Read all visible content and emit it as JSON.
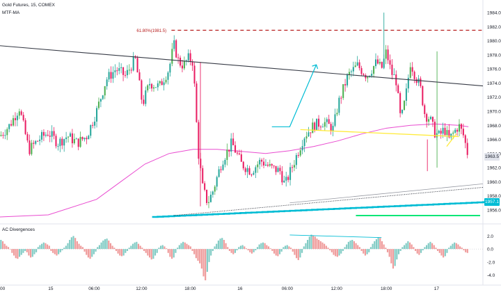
{
  "header": {
    "symbol": "Gold Futures, 15, COMEX",
    "indicator": "MTF-MA"
  },
  "sub_pane": {
    "title": "AC Divergences"
  },
  "fib": {
    "label": "61.80%(1981.5)",
    "price": 1981.5
  },
  "price_tags": [
    {
      "value": "1963.5",
      "price": 1963.5,
      "bg": "#e0e3eb",
      "fg": "#131722"
    },
    {
      "value": "1957.1",
      "price": 1957.1,
      "bg": "#00bcd4",
      "fg": "#ffffff"
    }
  ],
  "colors": {
    "up": "#26a69a",
    "up_green": "#4caf50",
    "down": "#e91e63",
    "ma": "#e94bd0",
    "trend": "#363a45",
    "fib": "#b71c1c",
    "arrow": "#00bcd4",
    "yellow": "#ffeb3b",
    "green": "#00e676",
    "hist_up": "#80cbc4",
    "hist_down": "#ef9a9a"
  },
  "chart_data": {
    "type": "candlestick",
    "title": "Gold Futures, 15, COMEX",
    "ylim": [
      1955,
      1985
    ],
    "y_ticks": [
      "1984.0",
      "1982.0",
      "1980.0",
      "1978.0",
      "1976.0",
      "1974.0",
      "1972.0",
      "1970.0",
      "1968.0",
      "1966.0",
      "1964.0",
      "1962.0",
      "1960.0",
      "1958.0",
      "1956.0"
    ],
    "sub_ylim": [
      -5,
      3
    ],
    "sub_ticks": [
      "2.0",
      "0.0",
      "-2.0",
      "-4.0"
    ],
    "x_ticks": [
      {
        "label": "00",
        "at": 0
      },
      {
        "label": "15",
        "at": 0.105
      },
      {
        "label": "06:00",
        "at": 0.195
      },
      {
        "label": "12:00",
        "at": 0.293
      },
      {
        "label": "18:00",
        "at": 0.394
      },
      {
        "label": "16",
        "at": 0.497
      },
      {
        "label": "06:00",
        "at": 0.595
      },
      {
        "label": "12:00",
        "at": 0.697
      },
      {
        "label": "18:00",
        "at": 0.8
      },
      {
        "label": "17",
        "at": 0.904
      }
    ],
    "close_path": [
      [
        0.0,
        1966.5
      ],
      [
        0.02,
        1968.0
      ],
      [
        0.04,
        1970.5
      ],
      [
        0.06,
        1964.5
      ],
      [
        0.08,
        1966.0
      ],
      [
        0.1,
        1967.0
      ],
      [
        0.12,
        1965.5
      ],
      [
        0.14,
        1966.5
      ],
      [
        0.16,
        1965.5
      ],
      [
        0.18,
        1966.5
      ],
      [
        0.2,
        1970.0
      ],
      [
        0.22,
        1974.5
      ],
      [
        0.24,
        1976.0
      ],
      [
        0.26,
        1975.0
      ],
      [
        0.28,
        1977.5
      ],
      [
        0.295,
        1971.0
      ],
      [
        0.31,
        1974.0
      ],
      [
        0.33,
        1973.5
      ],
      [
        0.35,
        1976.0
      ],
      [
        0.36,
        1979.5
      ],
      [
        0.37,
        1977.0
      ],
      [
        0.38,
        1976.5
      ],
      [
        0.39,
        1977.5
      ],
      [
        0.4,
        1977.0
      ],
      [
        0.41,
        1964.5
      ],
      [
        0.42,
        1959.0
      ],
      [
        0.43,
        1957.0
      ],
      [
        0.44,
        1958.5
      ],
      [
        0.46,
        1963.0
      ],
      [
        0.48,
        1965.5
      ],
      [
        0.5,
        1962.5
      ],
      [
        0.52,
        1961.5
      ],
      [
        0.54,
        1963.0
      ],
      [
        0.56,
        1962.0
      ],
      [
        0.58,
        1961.5
      ],
      [
        0.59,
        1959.5
      ],
      [
        0.61,
        1963.0
      ],
      [
        0.63,
        1966.5
      ],
      [
        0.65,
        1968.0
      ],
      [
        0.67,
        1968.5
      ],
      [
        0.69,
        1967.5
      ],
      [
        0.7,
        1971.0
      ],
      [
        0.72,
        1975.0
      ],
      [
        0.74,
        1976.5
      ],
      [
        0.76,
        1975.0
      ],
      [
        0.78,
        1977.0
      ],
      [
        0.79,
        1976.0
      ],
      [
        0.8,
        1978.5
      ],
      [
        0.81,
        1975.5
      ],
      [
        0.82,
        1974.5
      ],
      [
        0.83,
        1968.5
      ],
      [
        0.84,
        1972.0
      ],
      [
        0.85,
        1977.0
      ],
      [
        0.86,
        1975.0
      ],
      [
        0.87,
        1973.5
      ],
      [
        0.88,
        1969.5
      ],
      [
        0.89,
        1969.0
      ],
      [
        0.9,
        1967.0
      ],
      [
        0.91,
        1966.5
      ],
      [
        0.92,
        1967.5
      ],
      [
        0.93,
        1966.0
      ],
      [
        0.94,
        1967.0
      ],
      [
        0.95,
        1968.0
      ],
      [
        0.96,
        1966.5
      ],
      [
        0.97,
        1963.5
      ]
    ],
    "ma_path": [
      [
        0.0,
        1955.0
      ],
      [
        0.1,
        1955.3
      ],
      [
        0.2,
        1957.5
      ],
      [
        0.25,
        1960.0
      ],
      [
        0.3,
        1962.5
      ],
      [
        0.35,
        1964.0
      ],
      [
        0.4,
        1964.6
      ],
      [
        0.45,
        1964.6
      ],
      [
        0.5,
        1964.3
      ],
      [
        0.55,
        1964.0
      ],
      [
        0.6,
        1964.4
      ],
      [
        0.65,
        1965.0
      ],
      [
        0.7,
        1965.8
      ],
      [
        0.75,
        1966.8
      ],
      [
        0.8,
        1967.6
      ],
      [
        0.85,
        1968.0
      ],
      [
        0.9,
        1968.2
      ],
      [
        0.95,
        1968.0
      ],
      [
        0.97,
        1967.8
      ]
    ],
    "histogram": [
      1.4,
      1.2,
      0.8,
      0.5,
      0.3,
      0.0,
      -0.6,
      -1.0,
      -1.4,
      -1.5,
      -1.2,
      -0.9,
      -0.6,
      -0.3,
      -0.5,
      -1.0,
      -1.3,
      -1.2,
      -0.8,
      -0.5,
      0.3,
      0.6,
      0.8,
      1.0,
      0.9,
      0.7,
      0.5,
      -0.3,
      -0.6,
      -0.8,
      -1.0,
      -0.8,
      -0.5,
      -0.2,
      0.2,
      0.5,
      0.9,
      1.4,
      1.8,
      2.0,
      1.7,
      1.2,
      0.8,
      0.5,
      0.3,
      -0.4,
      -0.9,
      -1.3,
      -1.5,
      -1.2,
      -0.8,
      -0.4,
      0.3,
      0.6,
      1.0,
      1.3,
      1.5,
      1.6,
      1.3,
      0.9,
      0.5,
      0.2,
      -0.3,
      -0.7,
      -1.0,
      -1.1,
      -1.0,
      -0.6,
      -0.3,
      0.2,
      0.5,
      0.8,
      1.0,
      1.1,
      0.8,
      0.5,
      0.2,
      -0.3,
      -0.6,
      -1.0,
      -1.3,
      -1.6,
      -1.5,
      -1.0,
      -0.6,
      0.2,
      0.5,
      0.6,
      0.4,
      0.1,
      -0.6,
      -1.2,
      -1.5,
      -1.3,
      -0.6,
      0.2,
      0.6,
      0.9,
      1.1,
      1.0,
      0.8,
      0.6,
      0.4,
      -0.3,
      -0.8,
      -1.4,
      -1.8,
      -2.2,
      -3.0,
      -4.2,
      -4.8,
      -3.5,
      -2.0,
      -1.0,
      -0.3,
      0.4,
      0.8,
      1.3,
      1.6,
      1.7,
      1.4,
      0.9,
      0.3,
      -0.3,
      -0.6,
      -0.8,
      -0.6,
      -0.2,
      0.3,
      0.5,
      0.6,
      0.4,
      0.1,
      -0.2,
      -0.5,
      -0.7,
      -0.5,
      -0.2,
      0.3,
      0.7,
      0.9,
      1.0,
      0.9,
      0.6,
      0.4,
      0.1,
      -0.3,
      -0.7,
      -1.0,
      -1.1,
      -0.8,
      -0.4,
      0.3,
      0.5,
      0.6,
      0.4,
      0.2,
      -0.4,
      -0.9,
      -1.4,
      -1.7,
      -1.3,
      -0.6,
      0.4,
      0.9,
      1.4,
      1.9,
      2.2,
      2.1,
      1.9,
      1.6,
      1.4,
      1.2,
      1.0,
      0.8,
      0.5,
      0.2,
      -0.2,
      -0.5,
      -0.9,
      -1.1,
      -1.2,
      -1.0,
      -0.7,
      -0.3,
      0.3,
      0.7,
      1.1,
      1.3,
      1.4,
      1.2,
      0.9,
      0.6,
      0.3,
      -0.3,
      -0.7,
      -1.0,
      -0.8,
      -0.5,
      0.3,
      0.8,
      1.2,
      1.5,
      1.8,
      1.7,
      1.2,
      0.7,
      0.2,
      -0.5,
      -1.2,
      -2.2,
      -3.0,
      -2.6,
      -1.6,
      -0.8,
      -0.3,
      0.3,
      0.6,
      0.9,
      1.2,
      1.0,
      0.7,
      0.3,
      -0.3,
      -0.7,
      -0.9,
      -0.6,
      -0.2,
      0.3,
      0.6,
      0.9,
      1.1,
      0.9,
      0.6,
      0.2,
      -0.3,
      -0.6,
      -1.0,
      -1.3,
      -1.1,
      -0.6,
      0.2,
      0.5,
      0.8,
      1.0,
      0.9,
      0.7,
      0.4,
      0.2,
      -0.2,
      -0.5,
      -0.6
    ]
  }
}
